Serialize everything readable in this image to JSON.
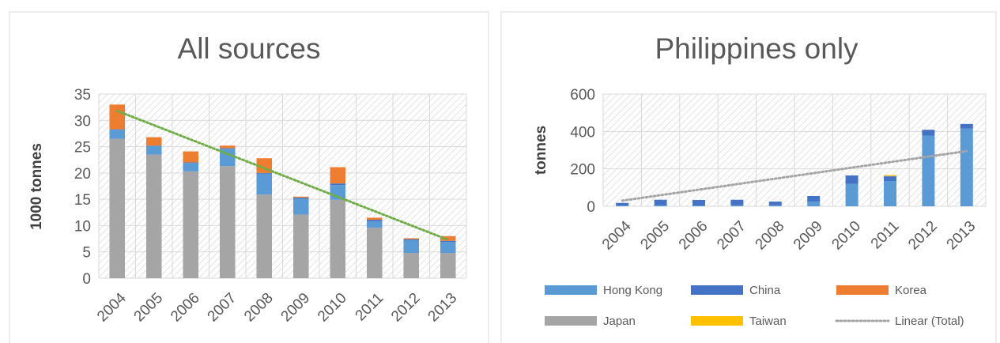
{
  "chart_data": [
    {
      "type": "bar",
      "stacked": true,
      "title": "All sources",
      "ylabel": "1000 tonnes",
      "xlabel": "",
      "ylim": [
        0,
        35
      ],
      "yticks": [
        0,
        5,
        10,
        15,
        20,
        25,
        30,
        35
      ],
      "grid": true,
      "legend": "none",
      "categories": [
        "2004",
        "2005",
        "2006",
        "2007",
        "2008",
        "2009",
        "2010",
        "2011",
        "2012",
        "2013"
      ],
      "series": [
        {
          "name": "Japan",
          "color": "#a5a5a5",
          "values": [
            26.5,
            23.5,
            20.3,
            21.3,
            15.9,
            12.1,
            14.9,
            9.6,
            4.8,
            4.8
          ]
        },
        {
          "name": "Hong Kong",
          "color": "#5b9bd5",
          "values": [
            1.7,
            1.6,
            1.6,
            3.3,
            4.0,
            3.0,
            2.8,
            1.2,
            2.4,
            2.1
          ]
        },
        {
          "name": "China",
          "color": "#4472c4",
          "values": [
            0.1,
            0.1,
            0.1,
            0.1,
            0.1,
            0.2,
            0.3,
            0.3,
            0.2,
            0.2
          ]
        },
        {
          "name": "Korea",
          "color": "#ed7d31",
          "values": [
            4.7,
            1.6,
            2.1,
            0.5,
            2.8,
            0.2,
            3.1,
            0.4,
            0.2,
            0.9
          ]
        },
        {
          "name": "Taiwan",
          "color": "#ffc000",
          "values": [
            0,
            0,
            0,
            0,
            0,
            0,
            0,
            0,
            0,
            0
          ]
        }
      ],
      "trendline": {
        "name": "Linear (Total)",
        "color": "#70ad47",
        "start": 31.8,
        "end": 7.3
      }
    },
    {
      "type": "bar",
      "stacked": true,
      "title": "Philippines only",
      "ylabel": "tonnes",
      "xlabel": "",
      "ylim": [
        0,
        600
      ],
      "yticks": [
        0,
        200,
        400,
        600
      ],
      "grid": true,
      "legend": "bottom",
      "categories": [
        "2004",
        "2005",
        "2006",
        "2007",
        "2008",
        "2009",
        "2010",
        "2011",
        "2012",
        "2013"
      ],
      "series": [
        {
          "name": "Hong Kong",
          "color": "#5b9bd5",
          "values": [
            3,
            5,
            4,
            5,
            5,
            25,
            120,
            135,
            378,
            415
          ]
        },
        {
          "name": "China",
          "color": "#4472c4",
          "values": [
            15,
            30,
            30,
            30,
            20,
            30,
            45,
            25,
            30,
            25
          ]
        },
        {
          "name": "Korea",
          "color": "#ed7d31",
          "values": [
            0,
            0,
            0,
            0,
            0,
            0,
            0,
            0,
            0,
            0
          ]
        },
        {
          "name": "Japan",
          "color": "#a5a5a5",
          "values": [
            0,
            0,
            0,
            0,
            0,
            0,
            0,
            2,
            2,
            0
          ]
        },
        {
          "name": "Taiwan",
          "color": "#ffc000",
          "values": [
            0,
            0,
            0,
            0,
            0,
            0,
            0,
            5,
            0,
            0
          ]
        }
      ],
      "trendline": {
        "name": "Linear (Total)",
        "color": "#a5a5a5",
        "start": 30,
        "end": 295
      },
      "legend_entries": [
        {
          "name": "Hong Kong",
          "color": "#5b9bd5",
          "kind": "bar"
        },
        {
          "name": "China",
          "color": "#4472c4",
          "kind": "bar"
        },
        {
          "name": "Korea",
          "color": "#ed7d31",
          "kind": "bar"
        },
        {
          "name": "Japan",
          "color": "#a5a5a5",
          "kind": "bar"
        },
        {
          "name": "Taiwan",
          "color": "#ffc000",
          "kind": "bar"
        },
        {
          "name": "Linear (Total)",
          "color": "#a5a5a5",
          "kind": "dotted-line"
        }
      ]
    }
  ]
}
